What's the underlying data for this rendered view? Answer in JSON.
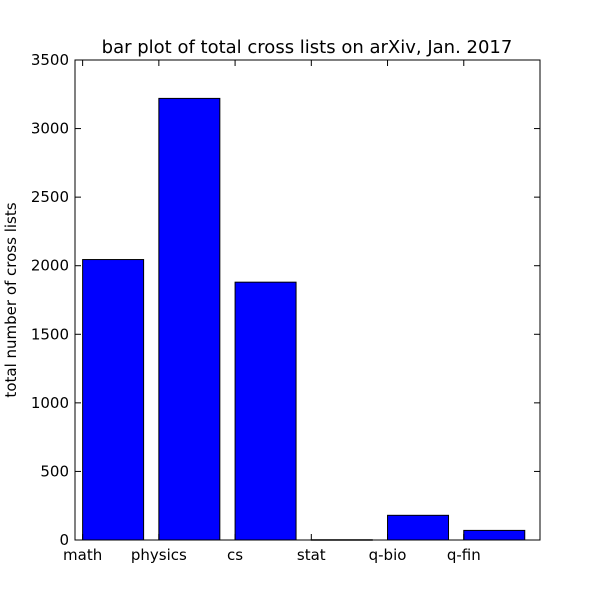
{
  "chart_data": {
    "type": "bar",
    "title": "bar plot of total cross lists on arXiv, Jan. 2017",
    "xlabel": "",
    "ylabel": "total number of cross lists",
    "categories": [
      "math",
      "physics",
      "cs",
      "stat",
      "q-bio",
      "q-fin"
    ],
    "values": [
      2045,
      3220,
      1880,
      2,
      180,
      70
    ],
    "ylim": [
      0,
      3500
    ],
    "yticks": [
      0,
      500,
      1000,
      1500,
      2000,
      2500,
      3000,
      3500
    ],
    "bar_color": "#0000ff",
    "bar_edge_color": "#000000",
    "grid": false,
    "legend": "none"
  }
}
